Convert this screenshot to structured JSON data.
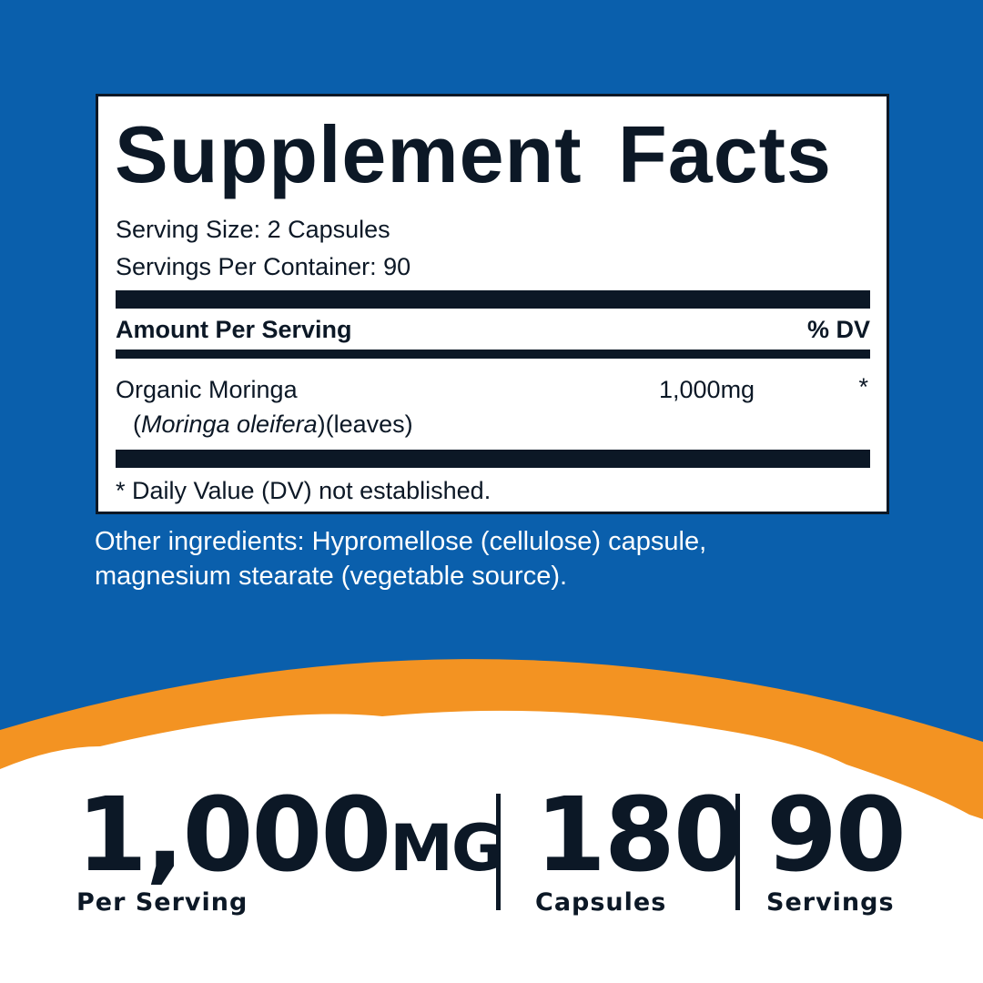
{
  "colors": {
    "blue": "#0a5fac",
    "orange": "#f39322",
    "text": "#0c1826"
  },
  "label": {
    "title": "Supplement Facts",
    "serving_size": "Serving Size: 2 Capsules",
    "servings_per_container": "Servings Per Container: 90",
    "amount_header": "Amount Per Serving",
    "dv_header": "% DV",
    "ingredient": {
      "name": "Organic Moringa",
      "latin": "Moringa oleifera",
      "part": "(leaves)",
      "amount": "1,000mg",
      "dv": "*"
    },
    "footnote": "* Daily Value (DV) not established."
  },
  "other_ingredients": {
    "line1": "Other ingredients: Hypromellose (cellulose) capsule,",
    "line2": "magnesium stearate (vegetable source)."
  },
  "stats": [
    {
      "value": "1,000",
      "unit": "MG",
      "label": "Per Serving"
    },
    {
      "value": "180",
      "label": "Capsules"
    },
    {
      "value": "90",
      "label": "Servings"
    }
  ]
}
